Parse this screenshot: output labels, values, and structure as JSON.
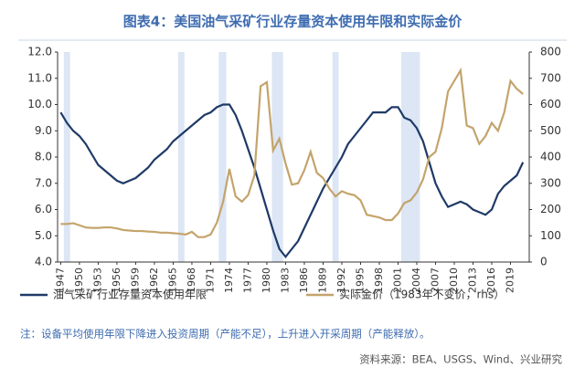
{
  "chart_data": {
    "type": "line",
    "title": "图表4：美国油气采矿行业存量资本使用年限和实际金价",
    "x": [
      1947,
      1948,
      1949,
      1950,
      1951,
      1952,
      1953,
      1954,
      1955,
      1956,
      1957,
      1958,
      1959,
      1960,
      1961,
      1962,
      1963,
      1964,
      1965,
      1966,
      1967,
      1968,
      1969,
      1970,
      1971,
      1972,
      1973,
      1974,
      1975,
      1976,
      1977,
      1978,
      1979,
      1980,
      1981,
      1982,
      1983,
      1984,
      1985,
      1986,
      1987,
      1988,
      1989,
      1990,
      1991,
      1992,
      1993,
      1994,
      1995,
      1996,
      1997,
      1998,
      1999,
      2000,
      2001,
      2002,
      2003,
      2004,
      2005,
      2006,
      2007,
      2008,
      2009,
      2010,
      2011,
      2012,
      2013,
      2014,
      2015,
      2016,
      2017,
      2018,
      2019,
      2020,
      2021
    ],
    "xlim": [
      1946.5,
      2022
    ],
    "xticks": [
      1947,
      1950,
      1953,
      1956,
      1959,
      1962,
      1965,
      1968,
      1971,
      1974,
      1977,
      1980,
      1983,
      1986,
      1989,
      1992,
      1995,
      1998,
      2001,
      2004,
      2007,
      2010,
      2013,
      2016,
      2019
    ],
    "ylim": [
      4,
      12
    ],
    "yticks": [
      {
        "value": 4,
        "label": "4.0"
      },
      {
        "value": 5,
        "label": "5.0"
      },
      {
        "value": 6,
        "label": "6.0"
      },
      {
        "value": 7,
        "label": "7.0"
      },
      {
        "value": 8,
        "label": "8.0"
      },
      {
        "value": 9,
        "label": "9.0"
      },
      {
        "value": 10,
        "label": "10.0"
      },
      {
        "value": 11,
        "label": "11.0"
      },
      {
        "value": 12,
        "label": "12.0"
      }
    ],
    "y2lim": [
      0,
      800
    ],
    "y2ticks": [
      0,
      100,
      200,
      300,
      400,
      500,
      600,
      700,
      800
    ],
    "shaded_periods": [
      [
        1947.5,
        1948.5
      ],
      [
        1965.8,
        1966.8
      ],
      [
        1972.3,
        1973.5
      ],
      [
        1980.8,
        1982.6
      ],
      [
        1990.5,
        1991.5
      ],
      [
        2001.5,
        2004.5
      ]
    ],
    "shade_color": "#dce6f4",
    "series": [
      {
        "name": "油气采矿行业存量资本使用年限",
        "color": "#1f3a68",
        "values": [
          9.7,
          9.3,
          9.0,
          8.8,
          8.5,
          8.1,
          7.7,
          7.5,
          7.3,
          7.1,
          7.0,
          7.1,
          7.2,
          7.4,
          7.6,
          7.9,
          8.1,
          8.3,
          8.6,
          8.8,
          9.0,
          9.2,
          9.4,
          9.6,
          9.7,
          9.9,
          10.0,
          10.0,
          9.6,
          9.0,
          8.3,
          7.6,
          6.8,
          6.0,
          5.2,
          4.5,
          4.2,
          4.5,
          4.8,
          5.3,
          5.8,
          6.3,
          6.8,
          7.2,
          7.6,
          8.0,
          8.5,
          8.8,
          9.1,
          9.4,
          9.7,
          9.7,
          9.7,
          9.9,
          9.9,
          9.5,
          9.4,
          9.1,
          8.6,
          7.8,
          7.0,
          6.5,
          6.1,
          6.2,
          6.3,
          6.2,
          6.0,
          5.9,
          5.8,
          6.0,
          6.6,
          6.9,
          7.1,
          7.3,
          7.8
        ]
      },
      {
        "name": "实际金价（1983年不变价，rhs）",
        "color": "#c4a46c",
        "axis": "y2",
        "values": [
          145,
          145,
          148,
          140,
          132,
          130,
          130,
          132,
          132,
          128,
          122,
          120,
          118,
          118,
          116,
          115,
          112,
          112,
          110,
          108,
          105,
          115,
          95,
          95,
          105,
          150,
          230,
          355,
          250,
          230,
          255,
          330,
          670,
          685,
          425,
          470,
          375,
          295,
          300,
          350,
          420,
          340,
          320,
          280,
          250,
          270,
          260,
          255,
          235,
          180,
          175,
          170,
          160,
          160,
          185,
          225,
          235,
          265,
          315,
          400,
          420,
          510,
          650,
          690,
          730,
          520,
          510,
          450,
          480,
          530,
          500,
          570,
          690,
          660,
          640
        ]
      }
    ],
    "note": "注：设备平均使用年限下降进入投资周期（产能不足），上升进入开采周期（产能释放）。",
    "source": "资料来源：BEA、USGS、Wind、兴业研究"
  }
}
